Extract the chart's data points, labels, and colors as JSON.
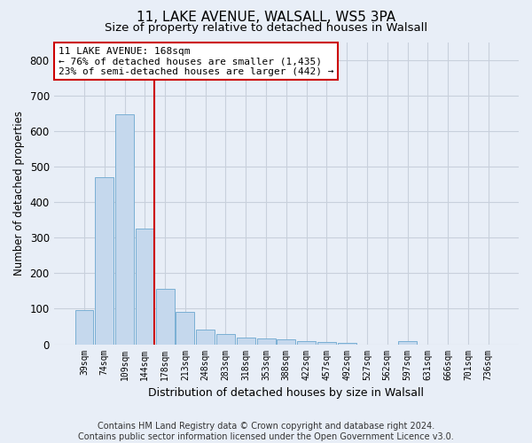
{
  "title1": "11, LAKE AVENUE, WALSALL, WS5 3PA",
  "title2": "Size of property relative to detached houses in Walsall",
  "xlabel": "Distribution of detached houses by size in Walsall",
  "ylabel": "Number of detached properties",
  "categories": [
    "39sqm",
    "74sqm",
    "109sqm",
    "144sqm",
    "178sqm",
    "213sqm",
    "248sqm",
    "283sqm",
    "318sqm",
    "353sqm",
    "388sqm",
    "422sqm",
    "457sqm",
    "492sqm",
    "527sqm",
    "562sqm",
    "597sqm",
    "631sqm",
    "666sqm",
    "701sqm",
    "736sqm"
  ],
  "values": [
    95,
    470,
    648,
    325,
    155,
    90,
    42,
    30,
    20,
    16,
    15,
    10,
    7,
    5,
    0,
    0,
    10,
    0,
    0,
    0,
    0
  ],
  "bar_color": "#c5d8ed",
  "bar_edge_color": "#7aafd4",
  "vline_color": "#cc0000",
  "annotation_text": "11 LAKE AVENUE: 168sqm\n← 76% of detached houses are smaller (1,435)\n23% of semi-detached houses are larger (442) →",
  "annotation_box_color": "#ffffff",
  "annotation_box_edge_color": "#cc0000",
  "ylim": [
    0,
    850
  ],
  "yticks": [
    0,
    100,
    200,
    300,
    400,
    500,
    600,
    700,
    800
  ],
  "footer": "Contains HM Land Registry data © Crown copyright and database right 2024.\nContains public sector information licensed under the Open Government Licence v3.0.",
  "background_color": "#e8eef7",
  "grid_color": "#c8d0dc",
  "title1_fontsize": 11,
  "title2_fontsize": 9.5,
  "annotation_fontsize": 8,
  "footer_fontsize": 7
}
